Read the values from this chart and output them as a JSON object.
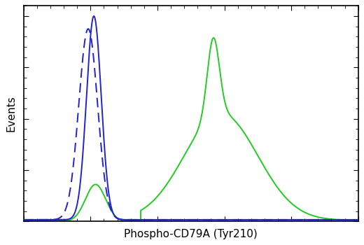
{
  "title": "",
  "xlabel": "Phospho-CD79A (Tyr210)",
  "ylabel": "Events",
  "xlabel_fontsize": 11,
  "ylabel_fontsize": 11,
  "background_color": "#ffffff",
  "plot_bg_color": "#ffffff",
  "line_color_solid_blue": "#2222cc",
  "line_color_dashed_blue": "#2222cc",
  "line_color_green": "#22cc22",
  "xlim": [
    0,
    1000
  ],
  "ylim": [
    0,
    1.05
  ],
  "figsize": [
    5.2,
    3.5
  ],
  "dpi": 100
}
